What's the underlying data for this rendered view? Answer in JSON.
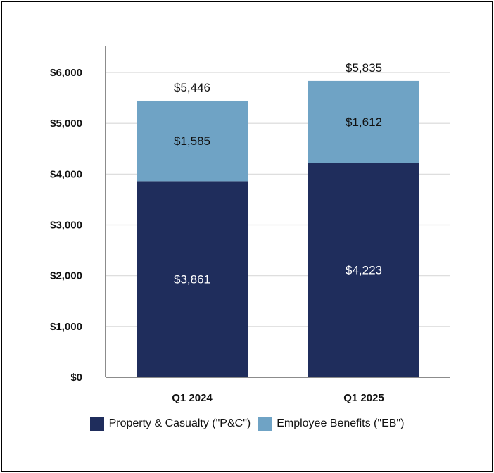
{
  "chart_data": {
    "type": "bar",
    "stacked": true,
    "categories": [
      "Q1 2024",
      "Q1 2025"
    ],
    "series": [
      {
        "name": "Property & Casualty (\"P&C\")",
        "values": [
          3861,
          4223
        ],
        "labels": [
          "$3,861",
          "$4,223"
        ],
        "color": "#1f2d5c",
        "label_color": "#ffffff"
      },
      {
        "name": "Employee Benefits (\"EB\")",
        "values": [
          1585,
          1612
        ],
        "labels": [
          "$1,585",
          "$1,612"
        ],
        "color": "#6fa3c5",
        "label_color": "#111111"
      }
    ],
    "totals": [
      5446,
      5835
    ],
    "total_labels": [
      "$5,446",
      "$5,835"
    ],
    "ylim": [
      0,
      6000
    ],
    "yticks": [
      0,
      1000,
      2000,
      3000,
      4000,
      5000,
      6000
    ],
    "ytick_labels": [
      "$0",
      "$1,000",
      "$2,000",
      "$3,000",
      "$4,000",
      "$5,000",
      "$6,000"
    ],
    "grid": true,
    "legend_position": "bottom",
    "title": "",
    "xlabel": "",
    "ylabel": ""
  }
}
